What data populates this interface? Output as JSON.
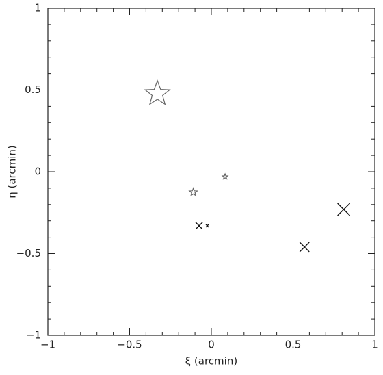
{
  "chart_data": {
    "type": "scatter",
    "xlabel": "ξ (arcmin)",
    "ylabel": "η (arcmin)",
    "xlim": [
      -1,
      1
    ],
    "ylim": [
      -1,
      1
    ],
    "xticks": [
      {
        "value": -1,
        "label": "−1"
      },
      {
        "value": -0.5,
        "label": "−0.5"
      },
      0,
      0.5,
      1
    ],
    "yticks": [
      {
        "value": -1,
        "label": "−1"
      },
      {
        "value": -0.5,
        "label": "−0.5"
      },
      0,
      0.5,
      1
    ],
    "xminorticks": [
      -0.9,
      -0.8,
      -0.7,
      -0.6,
      -0.4,
      -0.3,
      -0.2,
      -0.1,
      0.1,
      0.2,
      0.3,
      0.4,
      0.6,
      0.7,
      0.8,
      0.9
    ],
    "yminorticks": [
      -0.9,
      -0.8,
      -0.7,
      -0.6,
      -0.4,
      -0.3,
      -0.2,
      -0.1,
      0.1,
      0.2,
      0.3,
      0.4,
      0.6,
      0.7,
      0.8,
      0.9
    ],
    "series": [
      {
        "marker": "star",
        "color": "#666666",
        "x": [
          -0.33,
          0.084,
          -0.11
        ],
        "values": [
          0.477,
          -0.03,
          -0.125
        ],
        "sizes": [
          19,
          4,
          6
        ]
      },
      {
        "marker": "cross",
        "color": "#111111",
        "x": [
          -0.075,
          -0.025,
          0.57,
          0.81
        ],
        "values": [
          -0.33,
          -0.33,
          -0.46,
          -0.23
        ],
        "sizes": [
          5,
          2,
          7,
          9
        ]
      }
    ]
  }
}
